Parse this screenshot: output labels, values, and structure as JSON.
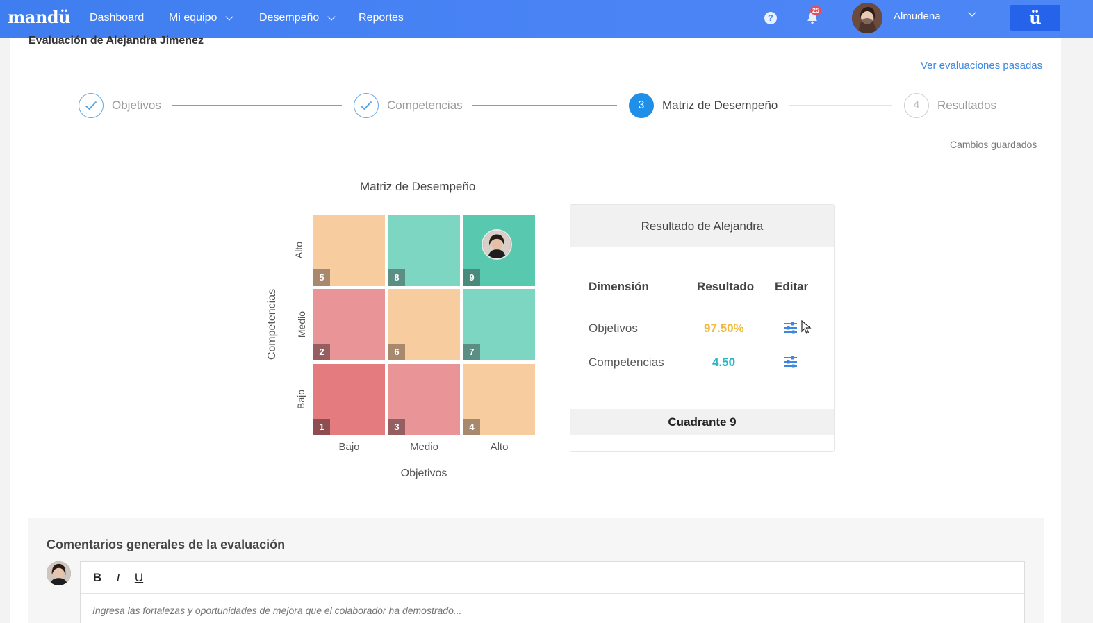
{
  "nav": {
    "brand": "mandü",
    "items": [
      "Dashboard",
      "Mi equipo",
      "Desempeño",
      "Reportes"
    ],
    "help_glyph": "?",
    "notifications_count": "25",
    "user_name": "Almudena",
    "app_badge": "ü",
    "accent": "#4b84f5"
  },
  "page": {
    "title": "Evaluación de Alejandra Jimenez",
    "past_link": "Ver evaluaciones pasadas",
    "saved_status": "Cambios guardados"
  },
  "stepper": {
    "steps": [
      {
        "label": "Objetivos",
        "state": "done",
        "marker": ""
      },
      {
        "label": "Competencias",
        "state": "done",
        "marker": ""
      },
      {
        "label": "Matriz de Desempeño",
        "state": "active",
        "marker": "3"
      },
      {
        "label": "Resultados",
        "state": "pending",
        "marker": "4"
      }
    ]
  },
  "matrix": {
    "title": "Matriz de Desempeño",
    "x_axis": "Objetivos",
    "y_axis": "Competencias",
    "x_ticks": [
      "Bajo",
      "Medio",
      "Alto"
    ],
    "y_ticks": [
      "Alto",
      "Medio",
      "Bajo"
    ],
    "cells": [
      {
        "num": "5",
        "color": "#f7cd9f"
      },
      {
        "num": "8",
        "color": "#7cd6c1"
      },
      {
        "num": "9",
        "color": "#58c9ae"
      },
      {
        "num": "2",
        "color": "#e99598"
      },
      {
        "num": "6",
        "color": "#f7cd9f"
      },
      {
        "num": "7",
        "color": "#7cd6c1"
      },
      {
        "num": "1",
        "color": "#e47b7e"
      },
      {
        "num": "3",
        "color": "#e99598"
      },
      {
        "num": "4",
        "color": "#f7cd9f"
      }
    ],
    "selected_quadrant": "9"
  },
  "result": {
    "header": "Resultado de Alejandra",
    "columns": [
      "Dimensión",
      "Resultado",
      "Editar"
    ],
    "rows": [
      {
        "dimension": "Objetivos",
        "value": "97.50%",
        "color": "#f0b93b"
      },
      {
        "dimension": "Competencias",
        "value": "4.50",
        "color": "#2bb5c4"
      }
    ],
    "footer": "Cuadrante 9"
  },
  "comments": {
    "title": "Comentarios generales de la evaluación",
    "toolbar": {
      "bold": "B",
      "italic": "I",
      "underline": "U"
    },
    "placeholder": "Ingresa las fortalezas y oportunidades de mejora que el colaborador ha demostrado..."
  }
}
